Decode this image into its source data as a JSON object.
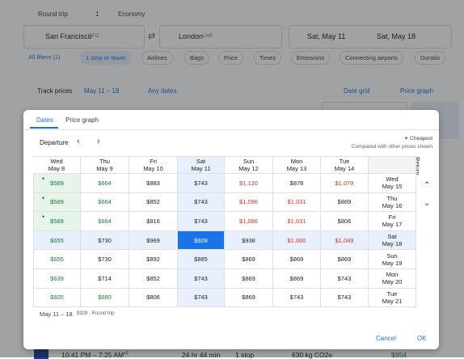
{
  "search": {
    "trip_type": "Round trip",
    "passengers": "1",
    "cabin": "Economy",
    "origin": "San Francisco",
    "origin_code": "SFO",
    "destination": "London",
    "destination_code": "LHR",
    "depart_date": "Sat, May 11",
    "return_date": "Sat, May 18"
  },
  "filters": [
    "All filters (1)",
    "1 stop or fewer",
    "Airlines",
    "Bags",
    "Price",
    "Times",
    "Emissions",
    "Connecting airports",
    "Duratio"
  ],
  "toolbar": {
    "track_prices": "Track prices",
    "track_dates": "May 11 – 18",
    "any_dates": "Any dates",
    "date_grid": "Date grid",
    "price_graph": "Price graph"
  },
  "flight_row": {
    "time": "10:41 PM – 7:25 AM",
    "day_offset": "+2",
    "duration": "24 hr 44 min",
    "stops": "1 stop",
    "emissions": "630 kg CO2e",
    "price": "$954"
  },
  "dialog": {
    "tabs": [
      "Dates",
      "Price graph"
    ],
    "departure_label": "Departure",
    "return_label": "Return",
    "legend_cheapest": "Cheapest",
    "legend_note": "Compared with other prices shown",
    "columns": [
      {
        "day": "Wed",
        "date": "May 8"
      },
      {
        "day": "Thu",
        "date": "May 9"
      },
      {
        "day": "Fri",
        "date": "May 10"
      },
      {
        "day": "Sat",
        "date": "May 11",
        "highlight": true
      },
      {
        "day": "Sun",
        "date": "May 12"
      },
      {
        "day": "Mon",
        "date": "May 13"
      },
      {
        "day": "Tue",
        "date": "May 14"
      }
    ],
    "rows": [
      {
        "day": "Wed",
        "date": "May 15",
        "cells": [
          {
            "price": "$589",
            "color": "#188038",
            "cheapest": true
          },
          {
            "price": "$664",
            "color": "#188038"
          },
          {
            "price": "$883",
            "color": "#202124"
          },
          {
            "price": "$743",
            "color": "#202124"
          },
          {
            "price": "$1,120",
            "color": "#d93025"
          },
          {
            "price": "$878",
            "color": "#202124"
          },
          {
            "price": "$1,079",
            "color": "#d93025"
          }
        ]
      },
      {
        "day": "Thu",
        "date": "May 16",
        "cells": [
          {
            "price": "$589",
            "color": "#188038",
            "cheapest": true
          },
          {
            "price": "$664",
            "color": "#188038"
          },
          {
            "price": "$852",
            "color": "#202124"
          },
          {
            "price": "$743",
            "color": "#202124"
          },
          {
            "price": "$1,096",
            "color": "#d93025"
          },
          {
            "price": "$1,031",
            "color": "#d93025"
          },
          {
            "price": "$869",
            "color": "#202124"
          }
        ]
      },
      {
        "day": "Fri",
        "date": "May 17",
        "cells": [
          {
            "price": "$589",
            "color": "#188038",
            "cheapest": true
          },
          {
            "price": "$664",
            "color": "#188038"
          },
          {
            "price": "$816",
            "color": "#202124"
          },
          {
            "price": "$743",
            "color": "#202124"
          },
          {
            "price": "$1,086",
            "color": "#d93025"
          },
          {
            "price": "$1,031",
            "color": "#d93025"
          },
          {
            "price": "$806",
            "color": "#202124"
          }
        ]
      },
      {
        "day": "Sat",
        "date": "May 18",
        "highlight": true,
        "cells": [
          {
            "price": "$655",
            "color": "#188038"
          },
          {
            "price": "$730",
            "color": "#202124"
          },
          {
            "price": "$969",
            "color": "#202124"
          },
          {
            "price": "$928",
            "color": "#ffffff",
            "selected": true
          },
          {
            "price": "$938",
            "color": "#202124"
          },
          {
            "price": "$1,060",
            "color": "#d93025"
          },
          {
            "price": "$1,049",
            "color": "#d93025"
          }
        ]
      },
      {
        "day": "Sun",
        "date": "May 19",
        "cells": [
          {
            "price": "$655",
            "color": "#188038"
          },
          {
            "price": "$730",
            "color": "#202124"
          },
          {
            "price": "$892",
            "color": "#202124"
          },
          {
            "price": "$885",
            "color": "#202124"
          },
          {
            "price": "$869",
            "color": "#202124"
          },
          {
            "price": "$869",
            "color": "#202124"
          },
          {
            "price": "$869",
            "color": "#202124"
          }
        ]
      },
      {
        "day": "Mon",
        "date": "May 20",
        "cells": [
          {
            "price": "$639",
            "color": "#188038"
          },
          {
            "price": "$714",
            "color": "#202124"
          },
          {
            "price": "$852",
            "color": "#202124"
          },
          {
            "price": "$743",
            "color": "#202124"
          },
          {
            "price": "$869",
            "color": "#202124"
          },
          {
            "price": "$869",
            "color": "#202124"
          },
          {
            "price": "$743",
            "color": "#202124"
          }
        ]
      },
      {
        "day": "Tue",
        "date": "May 21",
        "cells": [
          {
            "price": "$605",
            "color": "#188038"
          },
          {
            "price": "$680",
            "color": "#188038"
          },
          {
            "price": "$806",
            "color": "#202124"
          },
          {
            "price": "$743",
            "color": "#202124"
          },
          {
            "price": "$869",
            "color": "#202124"
          },
          {
            "price": "$743",
            "color": "#202124"
          },
          {
            "price": "$743",
            "color": "#202124"
          }
        ]
      }
    ],
    "selection_dates": "May 11 – 18",
    "selection_price": "$928 · Round trip",
    "cancel": "Cancel",
    "ok": "OK"
  }
}
